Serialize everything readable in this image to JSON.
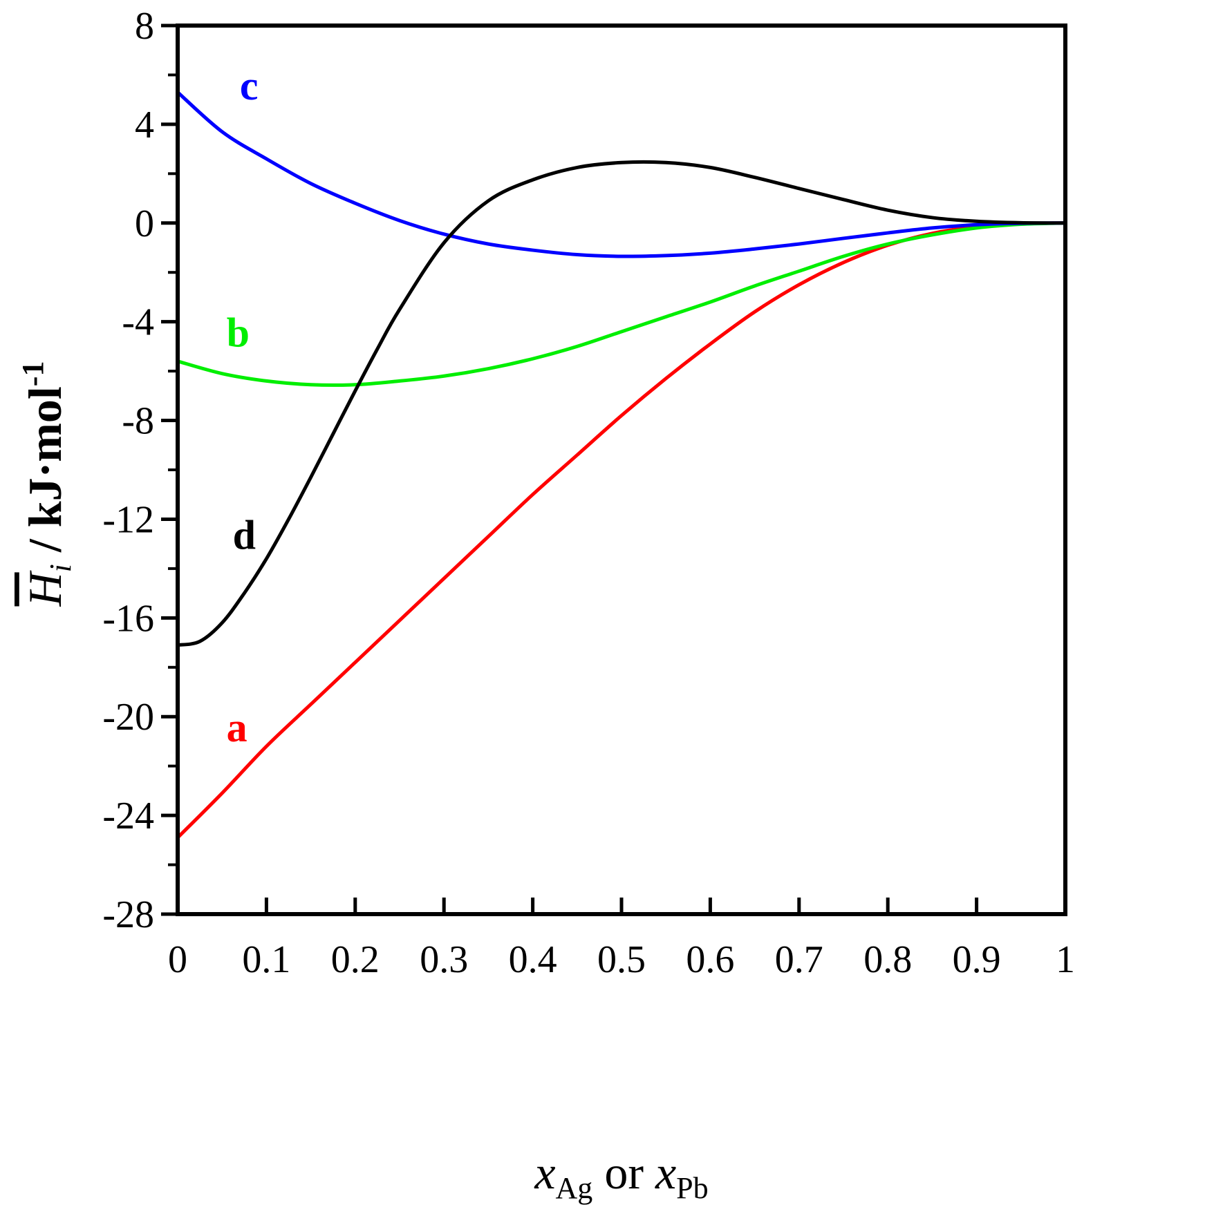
{
  "chart_data": {
    "type": "line",
    "xlim": [
      0,
      1
    ],
    "ylim": [
      -28,
      8
    ],
    "x_ticks": [
      "0",
      "0.1",
      "0.2",
      "0.3",
      "0.4",
      "0.5",
      "0.6",
      "0.7",
      "0.8",
      "0.9",
      "1"
    ],
    "y_ticks": [
      "8",
      "4",
      "0",
      "-4",
      "-8",
      "-12",
      "-16",
      "-20",
      "-24",
      "-28"
    ],
    "xlabel": {
      "var": "x",
      "sub1": "Ag",
      "middle": " or ",
      "sub2": "Pb"
    },
    "ylabel": {
      "symbol": "H",
      "sub": "i",
      "unit": " / kJ·mol",
      "sup": "-1"
    },
    "series": [
      {
        "name": "a",
        "color": "#ff0000",
        "x": [
          0,
          0.05,
          0.1,
          0.15,
          0.2,
          0.25,
          0.3,
          0.35,
          0.4,
          0.45,
          0.5,
          0.55,
          0.6,
          0.65,
          0.7,
          0.75,
          0.8,
          0.85,
          0.9,
          0.95,
          1.0
        ],
        "y": [
          -24.9,
          -23.1,
          -21.2,
          -19.5,
          -17.8,
          -16.1,
          -14.4,
          -12.7,
          -11.0,
          -9.4,
          -7.8,
          -6.3,
          -4.9,
          -3.6,
          -2.5,
          -1.6,
          -0.9,
          -0.42,
          -0.15,
          -0.03,
          0
        ]
      },
      {
        "name": "b",
        "color": "#00ee00",
        "x": [
          0,
          0.05,
          0.1,
          0.15,
          0.2,
          0.25,
          0.3,
          0.35,
          0.4,
          0.45,
          0.5,
          0.55,
          0.6,
          0.65,
          0.7,
          0.75,
          0.8,
          0.85,
          0.9,
          0.95,
          1.0
        ],
        "y": [
          -5.6,
          -6.1,
          -6.4,
          -6.55,
          -6.55,
          -6.4,
          -6.2,
          -5.9,
          -5.5,
          -5.0,
          -4.4,
          -3.8,
          -3.2,
          -2.55,
          -1.95,
          -1.35,
          -0.85,
          -0.48,
          -0.2,
          -0.05,
          0
        ]
      },
      {
        "name": "c",
        "color": "#0000ff",
        "x": [
          0,
          0.05,
          0.1,
          0.15,
          0.2,
          0.25,
          0.3,
          0.35,
          0.4,
          0.45,
          0.5,
          0.55,
          0.6,
          0.65,
          0.7,
          0.75,
          0.8,
          0.85,
          0.9,
          0.95,
          1.0
        ],
        "y": [
          5.3,
          3.7,
          2.6,
          1.6,
          0.8,
          0.1,
          -0.45,
          -0.85,
          -1.1,
          -1.28,
          -1.35,
          -1.32,
          -1.22,
          -1.05,
          -0.85,
          -0.62,
          -0.4,
          -0.2,
          -0.07,
          -0.01,
          0
        ]
      },
      {
        "name": "d",
        "color": "#000000",
        "x": [
          0,
          0.025,
          0.05,
          0.075,
          0.1,
          0.125,
          0.15,
          0.175,
          0.2,
          0.225,
          0.25,
          0.3,
          0.35,
          0.4,
          0.45,
          0.5,
          0.55,
          0.6,
          0.65,
          0.7,
          0.75,
          0.8,
          0.85,
          0.9,
          0.95,
          1.0
        ],
        "y": [
          -17.1,
          -16.95,
          -16.2,
          -15.0,
          -13.6,
          -12.0,
          -10.3,
          -8.55,
          -6.8,
          -5.1,
          -3.5,
          -0.8,
          0.9,
          1.75,
          2.25,
          2.45,
          2.45,
          2.25,
          1.85,
          1.4,
          0.95,
          0.52,
          0.22,
          0.07,
          0.01,
          0
        ]
      }
    ],
    "labels": [
      {
        "text": "a",
        "color": "#ff0000",
        "x": 0.055,
        "y": -21.0
      },
      {
        "text": "b",
        "color": "#00ee00",
        "x": 0.055,
        "y": -5.0
      },
      {
        "text": "c",
        "color": "#0000ff",
        "x": 0.07,
        "y": 5.0
      },
      {
        "text": "d",
        "color": "#000000",
        "x": 0.062,
        "y": -13.2
      }
    ]
  }
}
